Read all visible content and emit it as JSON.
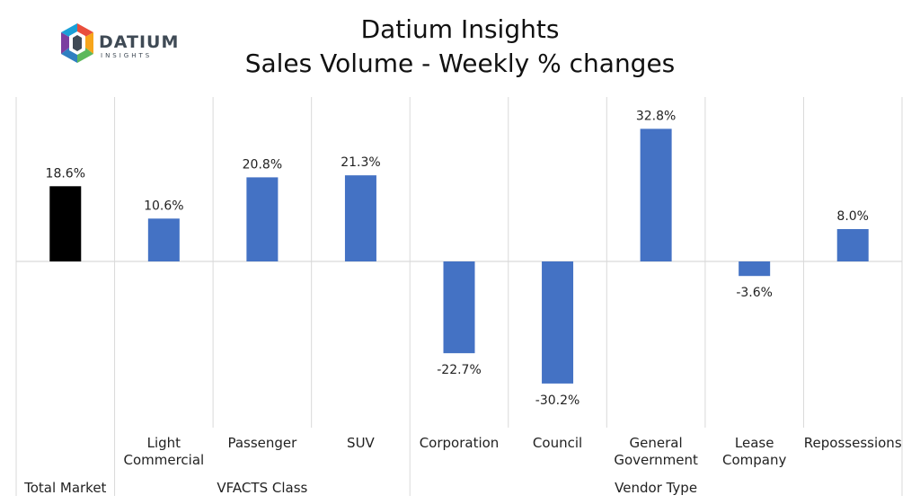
{
  "header": {
    "title": "Datium Insights",
    "subtitle": "Sales Volume - Weekly % changes"
  },
  "logo": {
    "name": "DATIUM",
    "tagline": "INSIGHTS",
    "colors": [
      "#e94e3c",
      "#f7a51b",
      "#5cb85c",
      "#2f7fc1",
      "#7b3fa0",
      "#1ba0d8"
    ]
  },
  "chart_data": {
    "type": "bar",
    "title": "Sales Volume - Weekly % changes",
    "categories": [
      "",
      "Light Commercial",
      "Passenger",
      "SUV",
      "Corporation",
      "Council",
      "General Government",
      "Lease Company",
      "Repossessions"
    ],
    "category_lines": [
      [
        ""
      ],
      [
        "Light",
        "Commercial"
      ],
      [
        "Passenger"
      ],
      [
        "SUV"
      ],
      [
        "Corporation"
      ],
      [
        "Council"
      ],
      [
        "General",
        "Government"
      ],
      [
        "Lease",
        "Company"
      ],
      [
        "Repossessions"
      ]
    ],
    "groups": [
      {
        "label": "Total Market",
        "span": 1
      },
      {
        "label": "VFACTS Class",
        "span": 3
      },
      {
        "label": "Vendor Type",
        "span": 5
      }
    ],
    "values": [
      18.6,
      10.6,
      20.8,
      21.3,
      -22.7,
      -30.2,
      32.8,
      -3.6,
      8.0
    ],
    "labels": [
      "18.6%",
      "10.6%",
      "20.8%",
      "21.3%",
      "-22.7%",
      "-30.2%",
      "32.8%",
      "-3.6%",
      "8.0%"
    ],
    "colors": {
      "total": "#000000",
      "bar": "#4472c4"
    },
    "ylim": [
      -40,
      40
    ],
    "grid": false
  }
}
